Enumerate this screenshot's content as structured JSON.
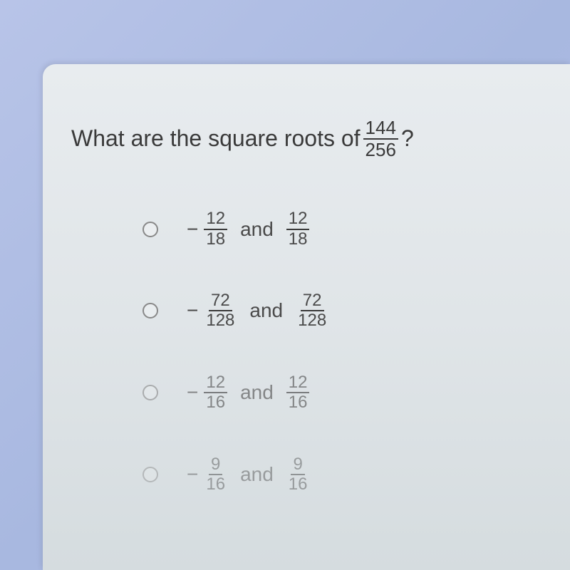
{
  "question": {
    "prefix": "What are the square roots of ",
    "fraction": {
      "num": "144",
      "den": "256"
    },
    "suffix": "?"
  },
  "options": [
    {
      "neg_num": "12",
      "neg_den": "18",
      "and": "and",
      "pos_num": "12",
      "pos_den": "18",
      "fade": ""
    },
    {
      "neg_num": "72",
      "neg_den": "128",
      "and": "and",
      "pos_num": "72",
      "pos_den": "128",
      "fade": ""
    },
    {
      "neg_num": "12",
      "neg_den": "16",
      "and": "and",
      "pos_num": "12",
      "pos_den": "16",
      "fade": "faded"
    },
    {
      "neg_num": "9",
      "neg_den": "16",
      "and": "and",
      "pos_num": "9",
      "pos_den": "16",
      "fade": "more-faded"
    }
  ],
  "colors": {
    "panel_bg": "#e0e5e8",
    "outer_bg": "#a8b8e0",
    "text": "#3a3a3a",
    "radio_border": "#888888"
  }
}
